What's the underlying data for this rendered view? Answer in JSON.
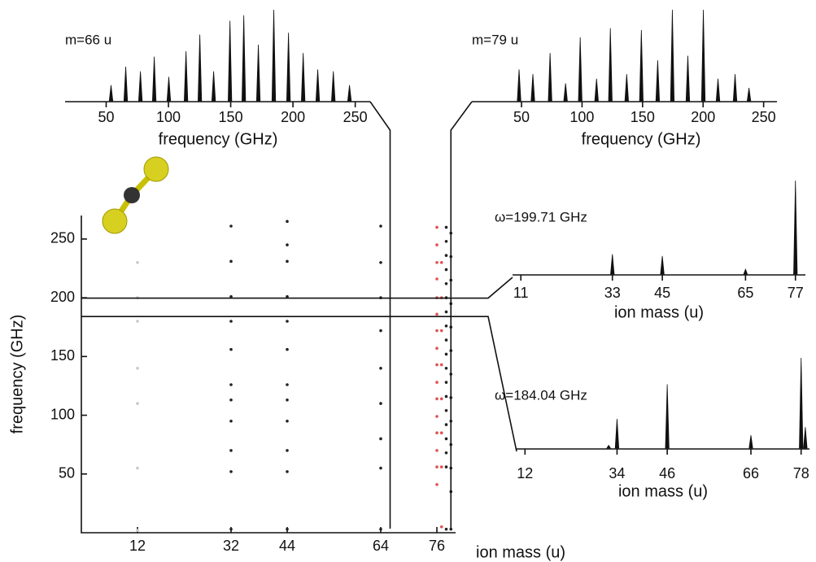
{
  "chart_data": [
    {
      "type": "scatter",
      "xlabel": "ion mass (u)",
      "ylabel": "frequency (GHz)",
      "xlim": [
        0,
        80
      ],
      "ylim": [
        0,
        270
      ],
      "xticks": [
        12,
        32,
        44,
        64,
        76
      ],
      "yticks": [
        50,
        100,
        150,
        200,
        250
      ],
      "guides": {
        "y": [
          199.71,
          184.04
        ],
        "x": [
          66,
          79
        ]
      },
      "series": [
        {
          "color": "#c8c8c8",
          "x": [
            12,
            12,
            12,
            12,
            12,
            12,
            12
          ],
          "values": [
            230,
            200,
            180,
            140,
            110,
            55,
            2
          ]
        },
        {
          "color": "#222222",
          "x": [
            32,
            32,
            32,
            32,
            32,
            32,
            32,
            32,
            32,
            32,
            32,
            44,
            44,
            44,
            44,
            44,
            44,
            44,
            44,
            44,
            44,
            44,
            44,
            64,
            64,
            64,
            64,
            64,
            64,
            64,
            64,
            64,
            78,
            78,
            78,
            78,
            78,
            78,
            78,
            78,
            78,
            78,
            78,
            78,
            78,
            78,
            78,
            78,
            78,
            78,
            78,
            79,
            79,
            79,
            79,
            79,
            79,
            79,
            79,
            79,
            79,
            79,
            79,
            79
          ],
          "values": [
            261,
            231,
            201,
            180,
            156,
            126,
            113,
            95,
            70,
            52,
            3,
            265,
            245,
            231,
            201,
            180,
            156,
            126,
            113,
            95,
            70,
            52,
            3,
            261,
            230,
            200,
            172,
            140,
            110,
            80,
            55,
            3,
            260,
            248,
            236,
            224,
            212,
            200,
            188,
            176,
            164,
            152,
            140,
            128,
            116,
            104,
            92,
            80,
            68,
            56,
            3,
            255,
            235,
            215,
            195,
            175,
            155,
            135,
            115,
            95,
            75,
            55,
            35,
            3
          ]
        },
        {
          "color": "#e05050",
          "x": [
            76,
            76,
            76,
            76,
            76,
            76,
            76,
            76,
            76,
            76,
            76,
            76,
            76,
            76,
            76,
            76,
            77,
            77,
            77,
            77,
            77,
            77,
            77,
            77
          ],
          "values": [
            260,
            245,
            230,
            216,
            200,
            186,
            172,
            157,
            143,
            128,
            114,
            99,
            85,
            70,
            56,
            41,
            230,
            200,
            172,
            143,
            114,
            85,
            56,
            5
          ]
        }
      ]
    },
    {
      "type": "spectrum",
      "annotation": "m=66 u",
      "xlabel": "frequency (GHz)",
      "xlim": [
        17,
        262
      ],
      "ylim": [
        0,
        1
      ],
      "xticks": [
        50,
        100,
        150,
        200,
        250
      ],
      "color": "#111111",
      "x": [
        53.9,
        65.7,
        77.5,
        88.6,
        100.3,
        114.1,
        125.2,
        136.3,
        149.4,
        160.5,
        172.2,
        184.6,
        196.4,
        208.2,
        219.9,
        232.4,
        245.4
      ],
      "values": [
        0.18,
        0.38,
        0.33,
        0.49,
        0.27,
        0.55,
        0.73,
        0.33,
        0.88,
        0.94,
        0.62,
        1.0,
        0.75,
        0.53,
        0.35,
        0.33,
        0.18
      ]
    },
    {
      "type": "spectrum",
      "annotation": "m=79 u",
      "xlabel": "frequency (GHz)",
      "xlim": [
        9,
        261
      ],
      "ylim": [
        0,
        1
      ],
      "xticks": [
        50,
        100,
        150,
        200,
        250
      ],
      "color": "#111111",
      "x": [
        48,
        59.4,
        73.6,
        86.4,
        98.5,
        112,
        123.4,
        136.9,
        149,
        162.5,
        174.6,
        187.4,
        200.2,
        212.3,
        226.4,
        237.9
      ],
      "values": [
        0.35,
        0.3,
        0.53,
        0.2,
        0.7,
        0.25,
        0.8,
        0.3,
        0.78,
        0.45,
        1.0,
        0.5,
        1.0,
        0.25,
        0.3,
        0.15
      ]
    },
    {
      "type": "spectrum",
      "annotation": "ω=199.71 GHz",
      "xlabel": "ion mass (u)",
      "xlim": [
        9,
        79.4
      ],
      "ylim": [
        0,
        1
      ],
      "xticks": [
        11,
        33,
        45,
        65,
        77
      ],
      "color": "#111111",
      "x": [
        33,
        45,
        65,
        77
      ],
      "values": [
        0.22,
        0.2,
        0.06,
        1.0
      ]
    },
    {
      "type": "spectrum",
      "annotation": "ω=184.04 GHz",
      "xlabel": "ion mass (u)",
      "xlim": [
        10,
        80
      ],
      "ylim": [
        0,
        1
      ],
      "xticks": [
        12,
        34,
        46,
        66,
        78
      ],
      "color": "#111111",
      "x": [
        32,
        34,
        46,
        66,
        78,
        79
      ],
      "values": [
        0.04,
        0.33,
        0.71,
        0.15,
        1.0,
        0.24
      ]
    }
  ]
}
